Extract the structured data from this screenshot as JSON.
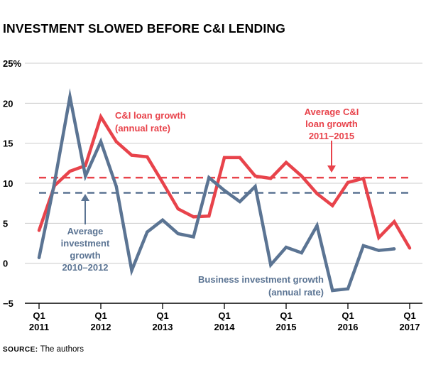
{
  "title": "INVESTMENT SLOWED BEFORE C&I LENDING",
  "source": {
    "label": "Source:",
    "text": "The authors"
  },
  "colors": {
    "loan": "#e8434b",
    "investment": "#5b7493",
    "axis": "#000000",
    "grid": "#cccccc"
  },
  "chart_data": {
    "type": "line",
    "title": "INVESTMENT SLOWED BEFORE C&I LENDING",
    "xlabel": "",
    "ylabel": "",
    "ylim": [
      -5,
      25
    ],
    "yticks": [
      -5,
      0,
      5,
      10,
      15,
      20,
      25
    ],
    "ytick_labels": [
      "−5",
      "0",
      "5",
      "10",
      "15",
      "20",
      "25%"
    ],
    "xlim": [
      0,
      24
    ],
    "xticks": [
      {
        "x": 0,
        "line1": "Q1",
        "line2": "2011"
      },
      {
        "x": 4,
        "line1": "Q1",
        "line2": "2012"
      },
      {
        "x": 8,
        "line1": "Q1",
        "line2": "2013"
      },
      {
        "x": 12,
        "line1": "Q1",
        "line2": "2014"
      },
      {
        "x": 16,
        "line1": "Q1",
        "line2": "2015"
      },
      {
        "x": 20,
        "line1": "Q1",
        "line2": "2016"
      },
      {
        "x": 24,
        "line1": "Q1",
        "line2": "2017"
      }
    ],
    "grid": true,
    "legend": "none",
    "series": [
      {
        "name": "C&I loan growth (annual rate)",
        "color": "#e8434b",
        "x": [
          0,
          1,
          2,
          3,
          4,
          5,
          6,
          7,
          8,
          9,
          10,
          11,
          12,
          13,
          14,
          15,
          16,
          17,
          18,
          19,
          20,
          21,
          22,
          23,
          24
        ],
        "values": [
          4.1,
          9.7,
          11.5,
          12.2,
          18.3,
          15.2,
          13.5,
          13.3,
          10.1,
          6.8,
          5.8,
          5.9,
          13.2,
          13.2,
          10.9,
          10.6,
          12.6,
          10.9,
          8.7,
          7.2,
          10.1,
          10.6,
          3.2,
          5.2,
          1.9
        ]
      },
      {
        "name": "Business investment growth (annual rate)",
        "color": "#5b7493",
        "x": [
          0,
          1,
          2,
          3,
          4,
          5,
          6,
          7,
          8,
          9,
          10,
          11,
          12,
          13,
          14,
          15,
          16,
          17,
          18,
          19,
          20,
          21,
          22,
          23
        ],
        "values": [
          0.7,
          10.1,
          20.8,
          10.9,
          15.2,
          9.6,
          -0.9,
          3.9,
          5.4,
          3.7,
          3.3,
          10.7,
          9.1,
          7.7,
          9.6,
          -0.2,
          2.0,
          1.3,
          4.7,
          -3.4,
          -3.2,
          2.2,
          1.6,
          1.8
        ]
      }
    ],
    "reference_lines": [
      {
        "name": "Average C&I loan growth 2011–2015",
        "value": 10.7,
        "color": "#e8434b",
        "style": "dashed"
      },
      {
        "name": "Average investment growth 2010–2012",
        "value": 8.8,
        "color": "#5b7493",
        "style": "dashed"
      }
    ],
    "annotations": {
      "loan_label": [
        "C&I loan growth",
        "(annual rate)"
      ],
      "invest_label": [
        "Business investment growth",
        "(annual rate)"
      ],
      "loan_avg_label": [
        "Average C&I",
        "loan growth",
        "2011–2015"
      ],
      "invest_avg_label": [
        "Average",
        "investment",
        "growth",
        "2010–2012"
      ]
    }
  }
}
